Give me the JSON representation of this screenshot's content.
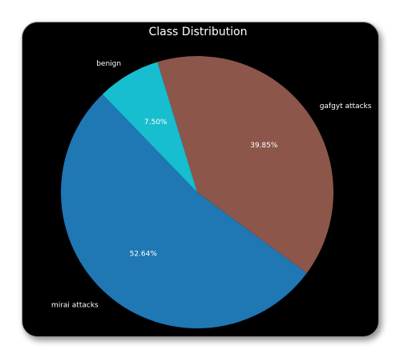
{
  "chart_data": {
    "type": "pie",
    "title": "Class Distribution",
    "slices": [
      {
        "label": "mirai attacks",
        "value": 52.64,
        "pct_label": "52.64%",
        "color": "#1f77b4"
      },
      {
        "label": "gafgyt attacks",
        "value": 39.85,
        "pct_label": "39.85%",
        "color": "#8c564b"
      },
      {
        "label": "benign",
        "value": 7.5,
        "pct_label": "7.50%",
        "color": "#17becf"
      }
    ],
    "start_angle_deg": 134,
    "direction": "counterclockwise"
  }
}
